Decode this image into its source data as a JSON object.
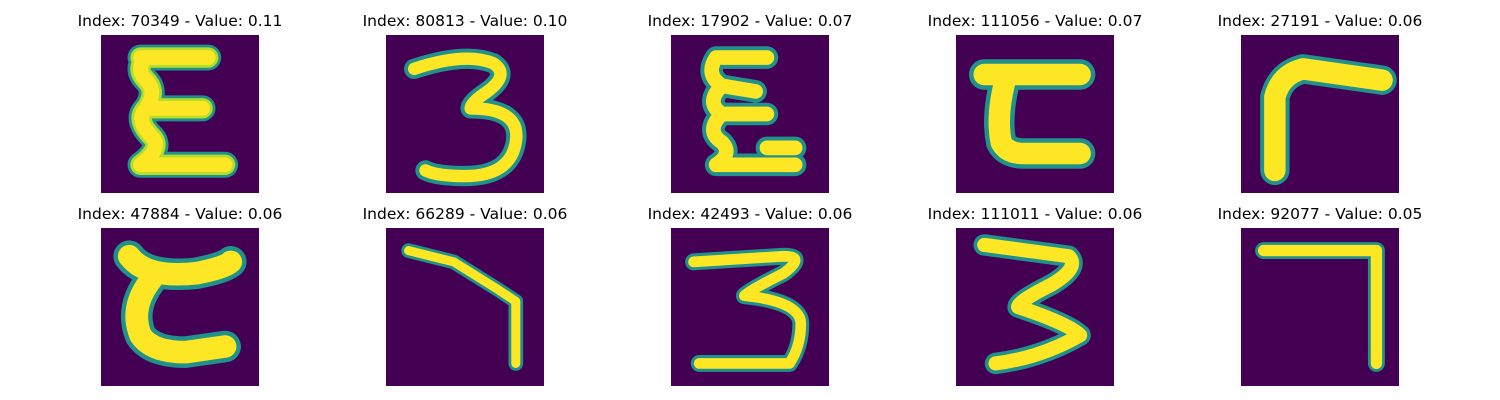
{
  "figure": {
    "colors": {
      "background": "#440154",
      "stroke_core": "#fde725",
      "stroke_mid": "#b5de2b",
      "stroke_edge": "#21918c"
    },
    "samples": [
      {
        "index": "70349",
        "value": "0.11",
        "title": "Index: 70349 - Value: 0.11",
        "glyph": "epsilon-like character"
      },
      {
        "index": "80813",
        "value": "0.10",
        "title": "Index: 80813 - Value: 0.10",
        "glyph": "three-like character"
      },
      {
        "index": "17902",
        "value": "0.07",
        "title": "Index: 17902 - Value: 0.07",
        "glyph": "epsilon-like character"
      },
      {
        "index": "111056",
        "value": "0.07",
        "title": "Index: 111056 - Value: 0.07",
        "glyph": "epsilon-like character"
      },
      {
        "index": "27191",
        "value": "0.06",
        "title": "Index: 27191 - Value: 0.06",
        "glyph": "corner character"
      },
      {
        "index": "47884",
        "value": "0.06",
        "title": "Index: 47884 - Value: 0.06",
        "glyph": "epsilon-like character"
      },
      {
        "index": "66289",
        "value": "0.06",
        "title": "Index: 66289 - Value: 0.06",
        "glyph": "seven-like character"
      },
      {
        "index": "42493",
        "value": "0.06",
        "title": "Index: 42493 - Value: 0.06",
        "glyph": "three-like character"
      },
      {
        "index": "111011",
        "value": "0.06",
        "title": "Index: 111011 - Value: 0.06",
        "glyph": "three-like character"
      },
      {
        "index": "92077",
        "value": "0.05",
        "title": "Index: 92077 - Value: 0.05",
        "glyph": "seven-like character"
      }
    ]
  }
}
